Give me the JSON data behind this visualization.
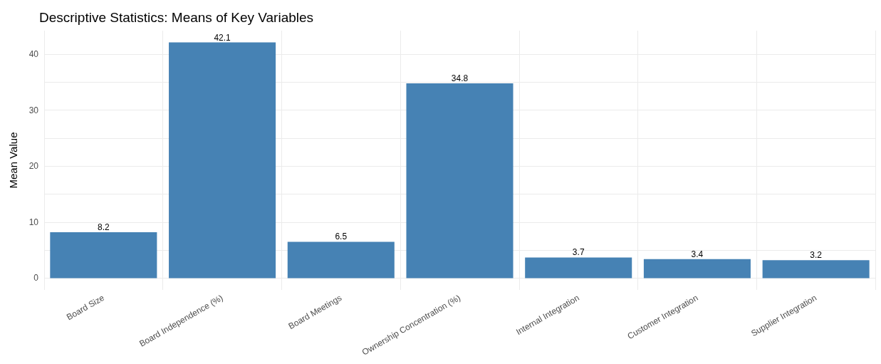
{
  "chart_data": {
    "type": "bar",
    "title": "Descriptive Statistics: Means of Key Variables",
    "ylabel": "Mean Value",
    "categories": [
      "Board Size",
      "Board Independence (%)",
      "Board Meetings",
      "Ownership Concentration (%)",
      "Internal Integration",
      "Customer Integration",
      "Supplier Integration"
    ],
    "values": [
      8.2,
      42.1,
      6.5,
      34.8,
      3.7,
      3.4,
      3.2
    ],
    "color": "#4682b4",
    "ylim": [
      -2.1,
      44.2
    ],
    "yticks": [
      0,
      {
        "value": 5,
        "label": null
      },
      10,
      {
        "value": 15,
        "label": null
      },
      20,
      {
        "value": 25,
        "label": null
      },
      30,
      {
        "value": 35,
        "label": null
      },
      40
    ],
    "grid": true,
    "data_labels": true
  }
}
